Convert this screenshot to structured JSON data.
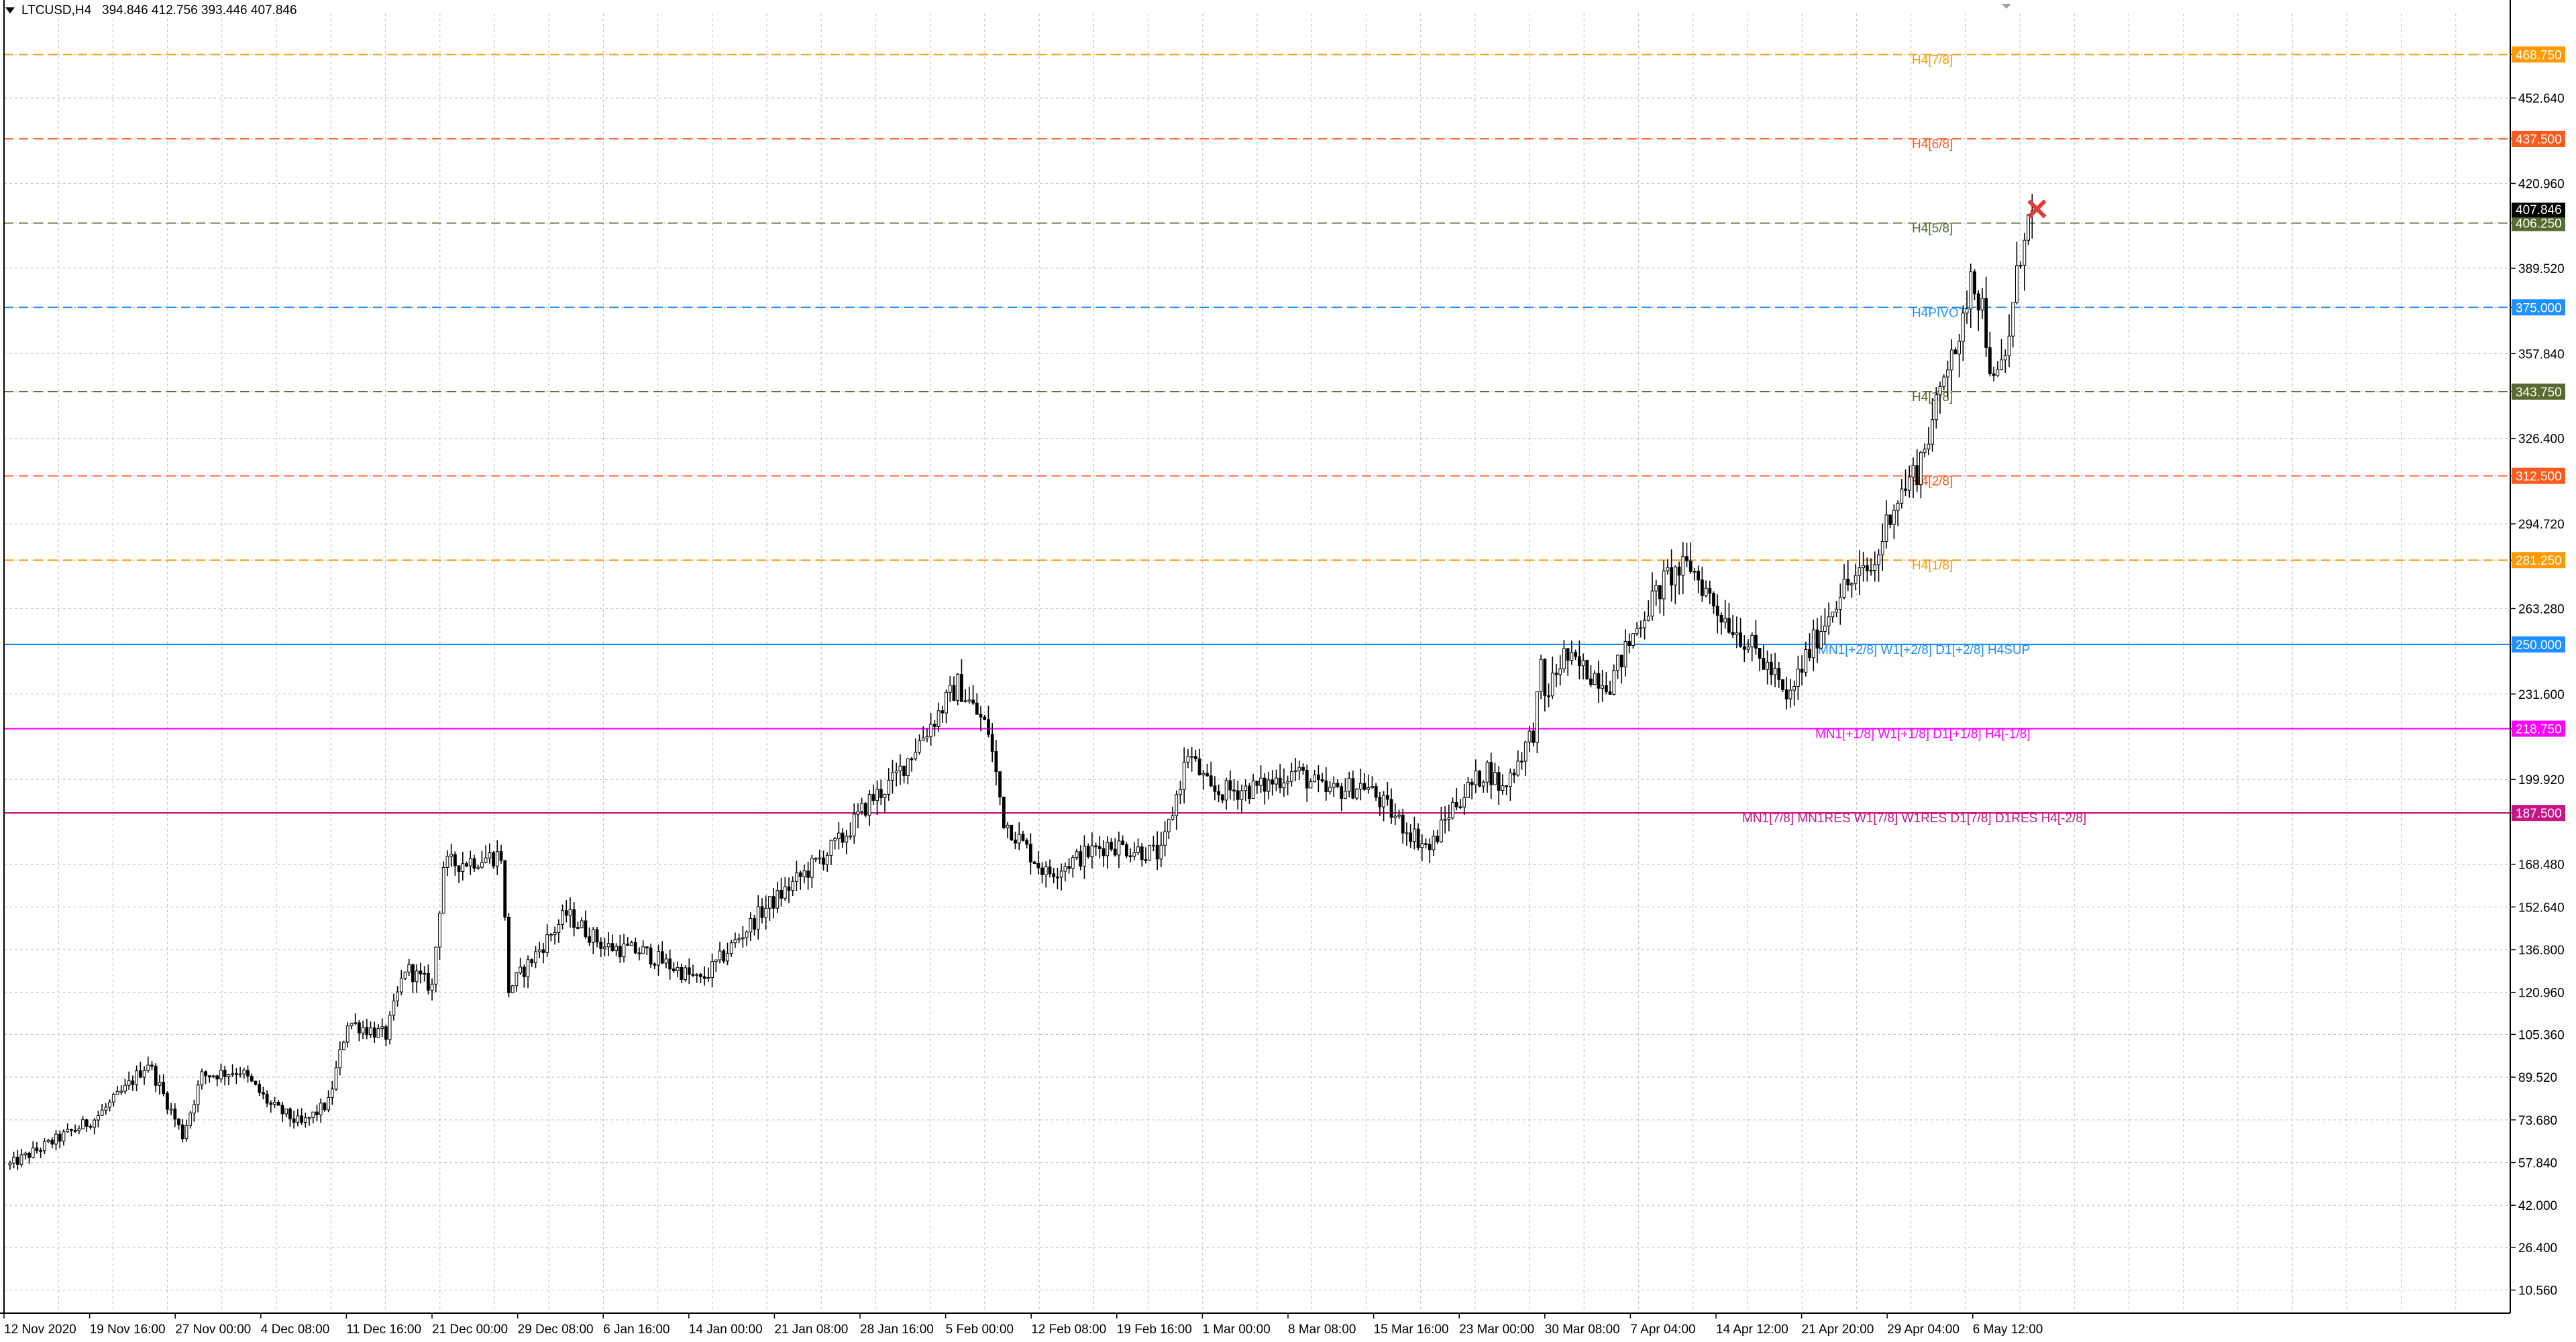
{
  "header": {
    "symbol_tf": "LTCUSD,H4",
    "ohlc": "394.846 412.756 393.446 407.846"
  },
  "colors": {
    "background": "#ffffff",
    "grid": "#c8c8c8",
    "candle": "#000000",
    "axis_text": "#000000"
  },
  "chart_data": {
    "type": "candlestick",
    "title": "LTCUSD,H4",
    "ylim": [
      2.0,
      484.0
    ],
    "y_ticks": [
      "468.750",
      "452.640",
      "437.500",
      "420.960",
      "406.250",
      "389.520",
      "375.000",
      "357.840",
      "343.750",
      "326.400",
      "312.500",
      "294.720",
      "281.250",
      "263.280",
      "250.000",
      "231.600",
      "218.750",
      "199.920",
      "187.500",
      "168.480",
      "152.640",
      "136.800",
      "120.960",
      "105.360",
      "89.520",
      "73.680",
      "57.840",
      "42.000",
      "26.400",
      "10.560"
    ],
    "x_labels": [
      "12 Nov 2020",
      "19 Nov 16:00",
      "27 Nov 00:00",
      "4 Dec 08:00",
      "11 Dec 16:00",
      "21 Dec 00:00",
      "29 Dec 08:00",
      "6 Jan 16:00",
      "14 Jan 00:00",
      "21 Jan 08:00",
      "28 Jan 16:00",
      "5 Feb 00:00",
      "12 Feb 08:00",
      "19 Feb 16:00",
      "1 Mar 00:00",
      "8 Mar 08:00",
      "15 Mar 16:00",
      "23 Mar 00:00",
      "30 Mar 08:00",
      "7 Apr 04:00",
      "14 Apr 12:00",
      "21 Apr 20:00",
      "29 Apr 04:00",
      "6 May 12:00"
    ],
    "price_path": [
      [
        0,
        57
      ],
      [
        22,
        74
      ],
      [
        30,
        85
      ],
      [
        36,
        95
      ],
      [
        41,
        80
      ],
      [
        45,
        68
      ],
      [
        50,
        90
      ],
      [
        60,
        92
      ],
      [
        68,
        79
      ],
      [
        76,
        72
      ],
      [
        83,
        80
      ],
      [
        88,
        110
      ],
      [
        98,
        105
      ],
      [
        103,
        130
      ],
      [
        110,
        123
      ],
      [
        113,
        168
      ],
      [
        128,
        172
      ],
      [
        130,
        122
      ],
      [
        145,
        150
      ],
      [
        155,
        138
      ],
      [
        165,
        136
      ],
      [
        180,
        125
      ],
      [
        196,
        151
      ],
      [
        207,
        165
      ],
      [
        217,
        178
      ],
      [
        224,
        192
      ],
      [
        230,
        199
      ],
      [
        236,
        212
      ],
      [
        247,
        235
      ],
      [
        255,
        218
      ],
      [
        259,
        185
      ],
      [
        270,
        165
      ],
      [
        286,
        176
      ],
      [
        300,
        172
      ],
      [
        307,
        210
      ],
      [
        313,
        195
      ],
      [
        326,
        197
      ],
      [
        335,
        203
      ],
      [
        343,
        195
      ],
      [
        353,
        198
      ],
      [
        363,
        183
      ],
      [
        370,
        174
      ],
      [
        376,
        190
      ],
      [
        385,
        204
      ],
      [
        389,
        196
      ],
      [
        397,
        218
      ],
      [
        399,
        240
      ],
      [
        400,
        230
      ],
      [
        405,
        246
      ],
      [
        407,
        243
      ],
      [
        417,
        236
      ],
      [
        426,
        262
      ],
      [
        432,
        275
      ],
      [
        438,
        279
      ],
      [
        445,
        263
      ],
      [
        452,
        252
      ],
      [
        460,
        238
      ],
      [
        463,
        228
      ],
      [
        468,
        245
      ],
      [
        477,
        270
      ],
      [
        486,
        279
      ],
      [
        490,
        300
      ],
      [
        497,
        315
      ],
      [
        502,
        337
      ],
      [
        506,
        363
      ],
      [
        508,
        357
      ],
      [
        511,
        390
      ],
      [
        514,
        375
      ],
      [
        517,
        345
      ],
      [
        520,
        356
      ],
      [
        525,
        405
      ],
      [
        527,
        408
      ]
    ],
    "last_price": "407.846",
    "current_price_label": "407.846",
    "levels": [
      {
        "price": 468.75,
        "value_label": "468.750",
        "tag": "H4[7/8]",
        "color": "#ff9900",
        "style": "dashed"
      },
      {
        "price": 437.5,
        "value_label": "437.500",
        "tag": "H4[6/8]",
        "color": "#ff5a1e",
        "style": "dashed"
      },
      {
        "price": 406.25,
        "value_label": "406.250",
        "tag": "H4[5/8]",
        "color": "#556b2f",
        "style": "dashed"
      },
      {
        "price": 375.0,
        "value_label": "375.000",
        "tag": "H4PIVOT",
        "color": "#1e90ff",
        "style": "dashed"
      },
      {
        "price": 343.75,
        "value_label": "343.750",
        "tag": "H4[3/8]",
        "color": "#556b2f",
        "style": "dashed"
      },
      {
        "price": 312.5,
        "value_label": "312.500",
        "tag": "H4[2/8]",
        "color": "#ff5a1e",
        "style": "dashed"
      },
      {
        "price": 281.25,
        "value_label": "281.250",
        "tag": "H4[1/8]",
        "color": "#ff9900",
        "style": "dashed"
      },
      {
        "price": 250.0,
        "value_label": "250.000",
        "tag": "MN1[+2/8] W1[+2/8] D1[+2/8] H4SUP",
        "color": "#1e90ff",
        "style": "solid"
      },
      {
        "price": 218.75,
        "value_label": "218.750",
        "tag": "MN1[+1/8] W1[+1/8] D1[+1/8] H4[-1/8]",
        "color": "#ff00ff",
        "style": "solid"
      },
      {
        "price": 187.5,
        "value_label": "187.500",
        "tag": "MN1[7/8] MN1RES W1[7/8] W1RES D1[7/8] D1RES H4[-2/8]",
        "color": "#c71585",
        "style": "solid"
      }
    ],
    "marker": {
      "type": "cross",
      "color": "#e03c3c",
      "price": 410
    },
    "grid": true
  }
}
